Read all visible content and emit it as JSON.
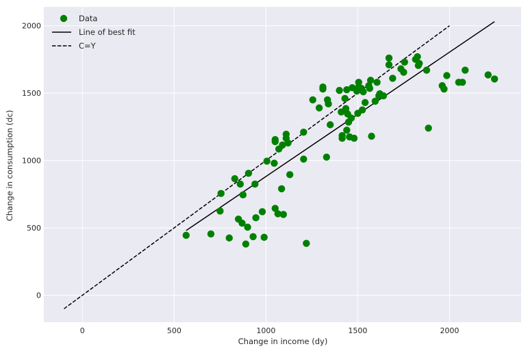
{
  "chart_data": {
    "type": "scatter",
    "title": "",
    "xlabel": "Change in income (dy)",
    "ylabel": "Change in consumption (dc)",
    "xlim": [
      -210,
      2390
    ],
    "ylim": [
      -200,
      2140
    ],
    "xticks": [
      0,
      500,
      1000,
      1500,
      2000
    ],
    "yticks": [
      0,
      500,
      1000,
      1500,
      2000
    ],
    "grid": true,
    "legend_position": "top-left",
    "colors": {
      "data": "#008000",
      "best_fit": "#000000",
      "cy": "#000000",
      "background": "#EAEAF2",
      "grid": "#FFFFFF"
    },
    "series": [
      {
        "name": "Data",
        "kind": "scatter",
        "points": [
          [
            565,
            445
          ],
          [
            700,
            455
          ],
          [
            750,
            625
          ],
          [
            755,
            755
          ],
          [
            800,
            425
          ],
          [
            830,
            865
          ],
          [
            850,
            565
          ],
          [
            860,
            825
          ],
          [
            870,
            535
          ],
          [
            875,
            745
          ],
          [
            890,
            380
          ],
          [
            900,
            505
          ],
          [
            905,
            905
          ],
          [
            930,
            435
          ],
          [
            940,
            825
          ],
          [
            945,
            575
          ],
          [
            980,
            620
          ],
          [
            990,
            430
          ],
          [
            1005,
            995
          ],
          [
            1045,
            980
          ],
          [
            1050,
            645
          ],
          [
            1050,
            1140
          ],
          [
            1050,
            1155
          ],
          [
            1065,
            605
          ],
          [
            1070,
            1085
          ],
          [
            1085,
            790
          ],
          [
            1090,
            1115
          ],
          [
            1095,
            600
          ],
          [
            1110,
            1165
          ],
          [
            1110,
            1195
          ],
          [
            1120,
            1130
          ],
          [
            1130,
            895
          ],
          [
            1205,
            1010
          ],
          [
            1205,
            1210
          ],
          [
            1220,
            385
          ],
          [
            1255,
            1450
          ],
          [
            1290,
            1390
          ],
          [
            1310,
            1530
          ],
          [
            1310,
            1545
          ],
          [
            1330,
            1025
          ],
          [
            1335,
            1450
          ],
          [
            1340,
            1420
          ],
          [
            1350,
            1265
          ],
          [
            1400,
            1520
          ],
          [
            1410,
            1360
          ],
          [
            1415,
            1165
          ],
          [
            1415,
            1185
          ],
          [
            1430,
            1460
          ],
          [
            1435,
            1385
          ],
          [
            1440,
            1225
          ],
          [
            1440,
            1525
          ],
          [
            1445,
            1345
          ],
          [
            1450,
            1285
          ],
          [
            1455,
            1175
          ],
          [
            1465,
            1315
          ],
          [
            1470,
            1540
          ],
          [
            1480,
            1165
          ],
          [
            1495,
            1515
          ],
          [
            1500,
            1350
          ],
          [
            1505,
            1545
          ],
          [
            1505,
            1580
          ],
          [
            1520,
            1535
          ],
          [
            1525,
            1375
          ],
          [
            1530,
            1510
          ],
          [
            1540,
            1430
          ],
          [
            1560,
            1555
          ],
          [
            1565,
            1535
          ],
          [
            1570,
            1595
          ],
          [
            1575,
            1180
          ],
          [
            1595,
            1440
          ],
          [
            1605,
            1580
          ],
          [
            1615,
            1480
          ],
          [
            1620,
            1495
          ],
          [
            1640,
            1480
          ],
          [
            1670,
            1710
          ],
          [
            1670,
            1760
          ],
          [
            1690,
            1610
          ],
          [
            1735,
            1680
          ],
          [
            1750,
            1655
          ],
          [
            1755,
            1730
          ],
          [
            1815,
            1750
          ],
          [
            1825,
            1770
          ],
          [
            1830,
            1705
          ],
          [
            1835,
            1720
          ],
          [
            1875,
            1670
          ],
          [
            1885,
            1240
          ],
          [
            1960,
            1555
          ],
          [
            1970,
            1530
          ],
          [
            1985,
            1630
          ],
          [
            2050,
            1580
          ],
          [
            2070,
            1580
          ],
          [
            2085,
            1670
          ],
          [
            2210,
            1635
          ],
          [
            2245,
            1605
          ]
        ]
      },
      {
        "name": "Line of best fit",
        "kind": "line",
        "style": "solid",
        "x": [
          565,
          2245
        ],
        "y": [
          480,
          2030
        ]
      },
      {
        "name": "C=Y",
        "kind": "line",
        "style": "dashed",
        "x": [
          -100,
          2000
        ],
        "y": [
          -100,
          2000
        ]
      }
    ]
  }
}
